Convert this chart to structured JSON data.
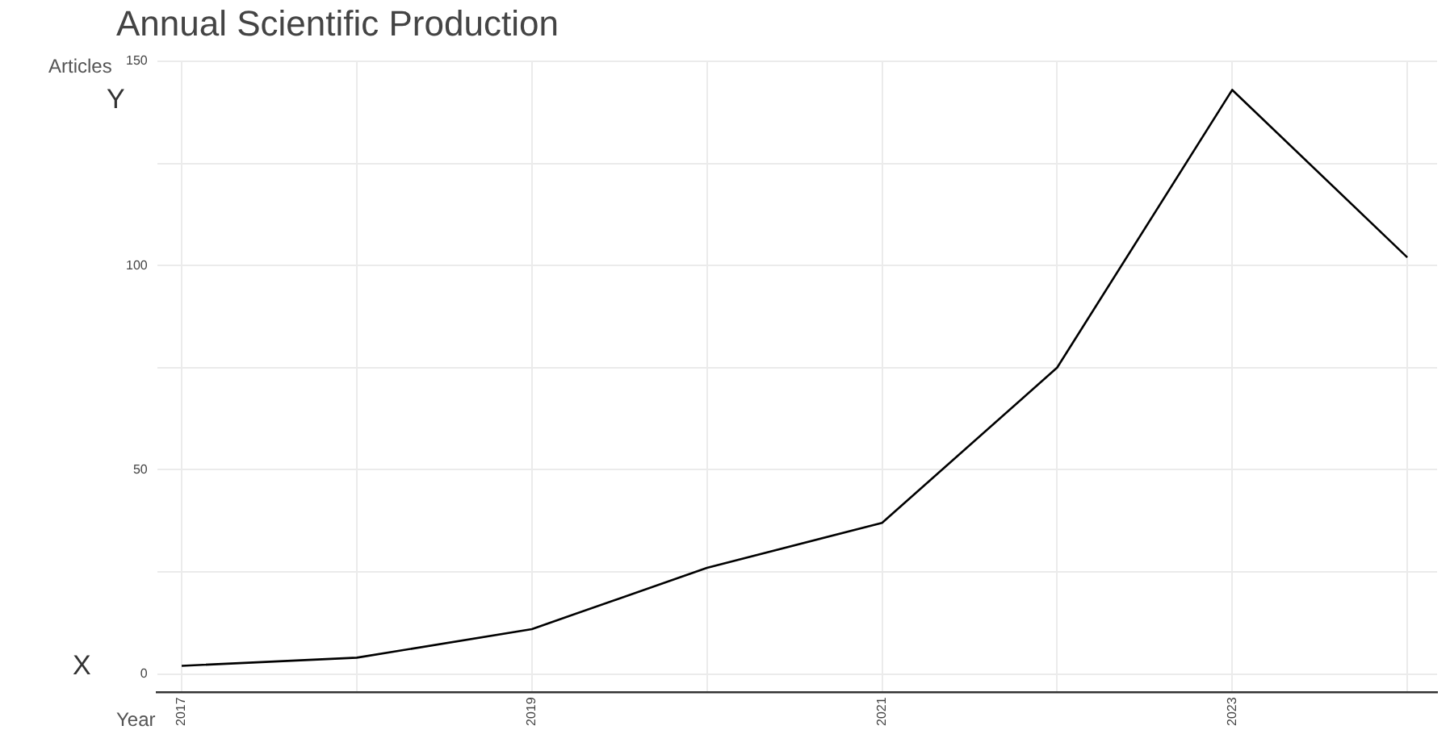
{
  "chart_data": {
    "type": "line",
    "title": "Annual Scientific Production",
    "xlabel": "Year",
    "ylabel": "Articles",
    "annotations": [
      "Y",
      "X"
    ],
    "x": [
      2017,
      2018,
      2019,
      2020,
      2021,
      2022,
      2023,
      2024
    ],
    "series": [
      {
        "color": "#000000",
        "values": [
          2,
          4,
          11,
          26,
          37,
          75,
          143,
          102
        ]
      }
    ],
    "xlim": [
      2016.86,
      2024.17
    ],
    "xticks": [
      2017,
      {
        "value": 2018,
        "label": null
      },
      2019,
      {
        "value": 2020,
        "label": null
      },
      2021,
      {
        "value": 2022,
        "label": null
      },
      2023,
      {
        "value": 2024,
        "label": null
      }
    ],
    "ylim": [
      -4.5,
      150
    ],
    "yticks": [
      0,
      {
        "value": 25,
        "label": null
      },
      50,
      {
        "value": 75,
        "label": null
      },
      100,
      {
        "value": 125,
        "label": null
      },
      150
    ],
    "grid": true,
    "legend": false,
    "marker": "none",
    "line_style": "solid"
  }
}
